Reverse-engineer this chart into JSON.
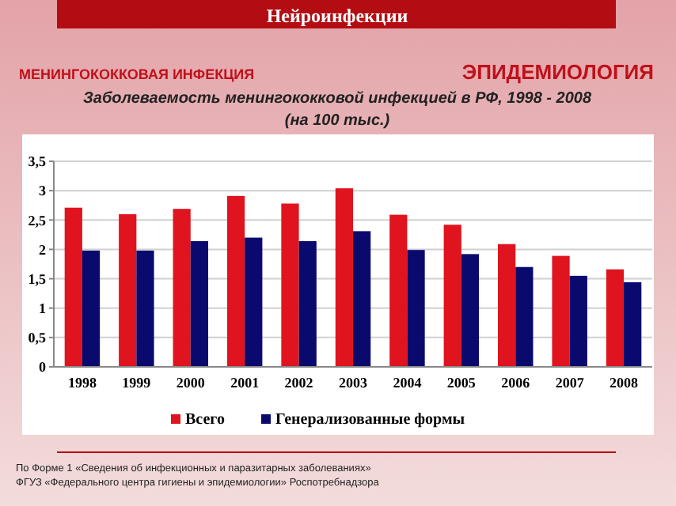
{
  "chart_data": {
    "type": "bar",
    "title": "Заболеваемость менингококковой инфекцией в РФ, 1998 - 2008",
    "subtitle": "(на 100 тыс.)",
    "annotations": [
      "Нейроинфекции",
      "МЕНИНГОКОККОВАЯ ИНФЕКЦИЯ",
      "ЭПИДЕМИОЛОГИЯ",
      "По Форме 1 «Сведения об инфекционных и паразитарных заболеваниях»",
      "ФГУЗ «Федерального центра гигиены и эпидемиологии» Роспотребнадзора"
    ],
    "categories": [
      "1998",
      "1999",
      "2000",
      "2001",
      "2002",
      "2003",
      "2004",
      "2005",
      "2006",
      "2007",
      "2008"
    ],
    "series": [
      {
        "name": "Всего",
        "color": "#e0141e",
        "values": [
          2.71,
          2.6,
          2.69,
          2.91,
          2.78,
          3.04,
          2.59,
          2.42,
          2.09,
          1.89,
          1.66
        ]
      },
      {
        "name": "Генерализованные формы",
        "color": "#0a0a6e",
        "values": [
          1.98,
          1.98,
          2.14,
          2.2,
          2.14,
          2.31,
          1.99,
          1.92,
          1.7,
          1.55,
          1.44
        ]
      }
    ],
    "ylim": [
      0,
      3.5
    ],
    "yticks": [
      0,
      {
        "value": 0.5,
        "label": "0,5"
      },
      1,
      {
        "value": 1.5,
        "label": "1,5"
      },
      2,
      {
        "value": 2.5,
        "label": "2,5"
      },
      3,
      {
        "value": 3.5,
        "label": "3,5"
      }
    ],
    "grid": "y",
    "legend": "bottom"
  }
}
